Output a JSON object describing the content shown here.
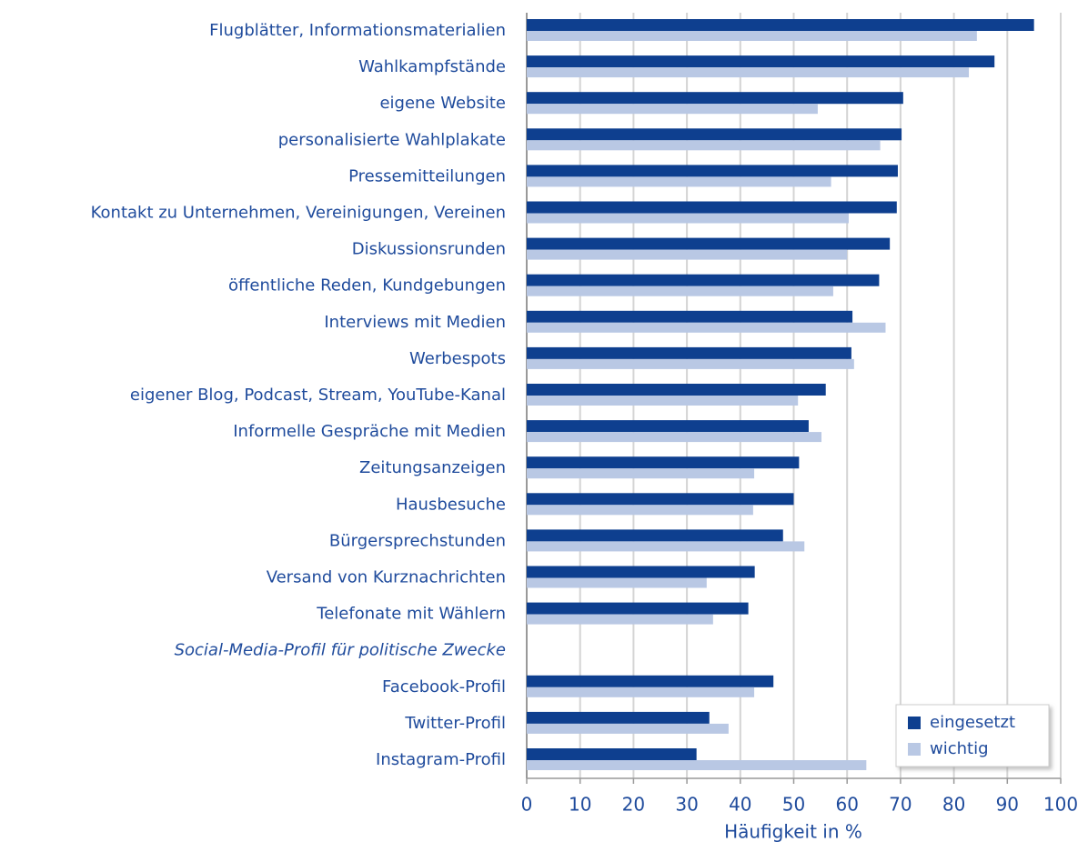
{
  "chart_data": {
    "type": "bar",
    "orientation": "horizontal",
    "x_label": "Häufigkeit in %",
    "categories": [
      "Flugblätter, Informationsmaterialien",
      "Wahlkampfstände",
      "eigene Website",
      "personalisierte Wahlplakate",
      "Pressemitteilungen",
      "Kontakt zu Unternehmen, Vereinigungen, Vereinen",
      "Diskussionsrunden",
      "öffentliche Reden, Kundgebungen",
      "Interviews mit Medien",
      "Werbespots ",
      "eigener Blog, Podcast, Stream, YouTube-Kanal",
      "Informelle Gespräche mit Medien",
      "Zeitungsanzeigen",
      "Hausbesuche",
      "Bürgersprechstunden",
      "Versand von Kurznachrichten",
      "Telefonate mit Wählern",
      "Social-Media-Profil für politische Zwecke",
      "Facebook-Profil",
      "Twitter-Profil",
      "Instagram-Profil"
    ],
    "series": [
      {
        "name": "eingesetzt",
        "color": "#0e3f8f",
        "values": [
          95,
          87.6,
          70.5,
          70.2,
          69.5,
          69.3,
          68,
          66,
          61,
          60.8,
          56,
          52.8,
          51,
          50,
          48,
          42.7,
          41.5,
          null,
          46.2,
          34.2,
          31.8
        ]
      },
      {
        "name": "wichtig",
        "color": "#b9c8e4",
        "values": [
          84.3,
          82.8,
          54.5,
          66.2,
          57,
          60.3,
          60,
          57.4,
          67.2,
          61.3,
          50.8,
          55.2,
          42.6,
          42.4,
          52,
          33.7,
          34.9,
          null,
          42.6,
          37.8,
          63.6
        ]
      }
    ],
    "xlim": [
      0,
      100
    ],
    "xticks": [
      0,
      10,
      20,
      30,
      40,
      50,
      60,
      70,
      80,
      90,
      100
    ],
    "grid": true,
    "legend": "lower right"
  }
}
